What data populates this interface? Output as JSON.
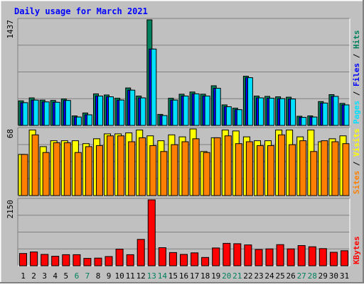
{
  "chart_data": {
    "type": "bar",
    "title": "Daily usage for March 2021",
    "days": [
      "1",
      "2",
      "3",
      "4",
      "5",
      "6",
      "7",
      "8",
      "9",
      "10",
      "11",
      "12",
      "13",
      "14",
      "15",
      "16",
      "17",
      "18",
      "19",
      "20",
      "21",
      "22",
      "23",
      "24",
      "25",
      "26",
      "27",
      "28",
      "29",
      "30",
      "31"
    ],
    "weekend_days": [
      6,
      7,
      13,
      14,
      20,
      21,
      27,
      28
    ],
    "colors": {
      "hits": "#00805c",
      "files": "#0000ff",
      "pages": "#00e0ff",
      "visits": "#ffff00",
      "sites": "#ff8000",
      "kbytes": "#ff0000",
      "title": "#0000ff",
      "weekend_label": "#00805c",
      "plot_bg": "#c0c0c0",
      "frame_bg": "#c0c0c0"
    },
    "panels": [
      {
        "id": "hits-files-pages",
        "ymax_label": "1437",
        "ymax": 1437,
        "legend": [
          {
            "text": "Pages",
            "color": "#00e0ff"
          },
          {
            "text": " / ",
            "color": "#000000"
          },
          {
            "text": "Files",
            "color": "#0000ff"
          },
          {
            "text": " / ",
            "color": "#000000"
          },
          {
            "text": "Hits",
            "color": "#00805c"
          }
        ],
        "series": [
          {
            "name": "Hits",
            "color": "#00805c",
            "values": [
              335,
              375,
              345,
              340,
              360,
              130,
              170,
              430,
              415,
              370,
              510,
              400,
              1437,
              150,
              370,
              425,
              455,
              425,
              540,
              280,
              235,
              670,
              400,
              395,
              390,
              385,
              125,
              130,
              325,
              420,
              300
            ]
          },
          {
            "name": "Files",
            "color": "#0000ff",
            "values": [
              310,
              345,
              320,
              315,
              340,
              115,
              145,
              400,
              390,
              345,
              480,
              375,
              1040,
              135,
              345,
              400,
              430,
              400,
              505,
              255,
              215,
              650,
              375,
              370,
              365,
              360,
              110,
              115,
              305,
              395,
              280
            ]
          },
          {
            "name": "Pages",
            "color": "#00e0ff",
            "values": [
              310,
              345,
              320,
              315,
              340,
              115,
              145,
              400,
              390,
              345,
              480,
              375,
              1040,
              135,
              345,
              400,
              430,
              400,
              505,
              255,
              215,
              650,
              375,
              370,
              365,
              360,
              110,
              115,
              305,
              395,
              280
            ]
          }
        ]
      },
      {
        "id": "visits-sites",
        "ymax_label": "68",
        "ymax": 68,
        "legend": [
          {
            "text": "Sites",
            "color": "#ff8000"
          },
          {
            "text": " / ",
            "color": "#000000"
          },
          {
            "text": "Visits",
            "color": "#ffff00"
          }
        ],
        "series": [
          {
            "name": "Visits",
            "color": "#ffff00",
            "values": [
              42,
              67,
              50,
              56,
              56,
              56,
              53,
              58,
              63,
              63,
              64,
              67,
              61,
              56,
              62,
              60,
              68,
              45,
              59,
              67,
              66,
              60,
              56,
              56,
              67,
              67,
              60,
              67,
              55,
              58,
              61
            ]
          },
          {
            "name": "Sites",
            "color": "#ff8000",
            "values": [
              42,
              62,
              44,
              54,
              54,
              44,
              50,
              51,
              61,
              61,
              55,
              59,
              51,
              45,
              52,
              55,
              58,
              44,
              59,
              61,
              53,
              55,
              51,
              51,
              62,
              52,
              56,
              45,
              56,
              55,
              53
            ]
          }
        ]
      },
      {
        "id": "kbytes",
        "ymax_label": "2150",
        "ymax": 2150,
        "legend": [
          {
            "text": "KBytes",
            "color": "#ff0000"
          }
        ],
        "series": [
          {
            "name": "KBytes",
            "color": "#ff0000",
            "values": [
              400,
              450,
              370,
              310,
              360,
              360,
              240,
              250,
              300,
              540,
              360,
              860,
              2150,
              590,
              430,
              370,
              420,
              270,
              580,
              730,
              720,
              680,
              530,
              550,
              690,
              550,
              660,
              620,
              560,
              440,
              490
            ]
          }
        ]
      }
    ]
  }
}
